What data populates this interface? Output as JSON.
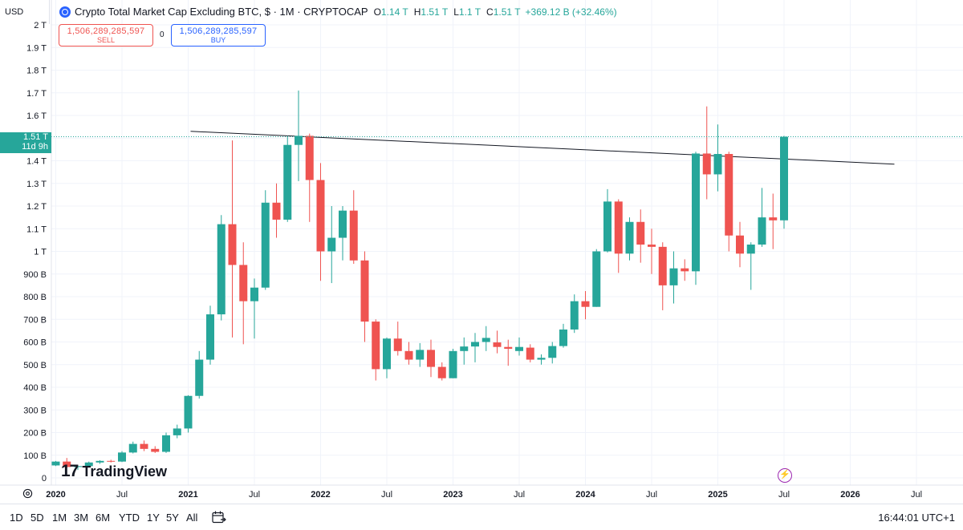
{
  "currency": "USD",
  "symbol": {
    "title": "Crypto Total Market Cap Excluding BTC, $ · 1M · CRYPTOCAP",
    "ohlc": [
      {
        "key": "O",
        "value": "1.14 T"
      },
      {
        "key": "H",
        "value": "1.51 T"
      },
      {
        "key": "L",
        "value": "1.1 T"
      },
      {
        "key": "C",
        "value": "1.51 T"
      }
    ],
    "change": "+369.12 B (+32.46%)"
  },
  "trade": {
    "sell_price": "1,506,289,285,597",
    "sell_label": "SELL",
    "spread": "0",
    "buy_price": "1,506,289,285,597",
    "buy_label": "BUY"
  },
  "last_price": {
    "value": "1.51 T",
    "countdown": "11d 9h"
  },
  "logo_text": "TradingView",
  "logo_mark": "17",
  "event_marker": "⚡",
  "periods": [
    "1D",
    "5D",
    "1M",
    "3M",
    "6M",
    "YTD",
    "1Y",
    "5Y",
    "All"
  ],
  "time": "16:44:01 UTC+1",
  "colors": {
    "up": "#26a69a",
    "down": "#ef5350",
    "accent": "#2962ff",
    "event": "#9c27b0"
  },
  "chart_data": {
    "type": "candlestick",
    "interval": "1M",
    "y_unit": "USD",
    "ylim": [
      0,
      2000000000000
    ],
    "y_ticks": [
      {
        "value": 0,
        "label": "0"
      },
      {
        "value": 100,
        "label": "100 B"
      },
      {
        "value": 200,
        "label": "200 B"
      },
      {
        "value": 300,
        "label": "300 B"
      },
      {
        "value": 400,
        "label": "400 B"
      },
      {
        "value": 500,
        "label": "500 B"
      },
      {
        "value": 600,
        "label": "600 B"
      },
      {
        "value": 700,
        "label": "700 B"
      },
      {
        "value": 800,
        "label": "800 B"
      },
      {
        "value": 900,
        "label": "900 B"
      },
      {
        "value": 1000,
        "label": "1 T"
      },
      {
        "value": 1100,
        "label": "1.1 T"
      },
      {
        "value": 1200,
        "label": "1.2 T"
      },
      {
        "value": 1300,
        "label": "1.3 T"
      },
      {
        "value": 1400,
        "label": "1.4 T"
      },
      {
        "value": 1500,
        "label": "1.5 T"
      },
      {
        "value": 1600,
        "label": "1.6 T"
      },
      {
        "value": 1700,
        "label": "1.7 T"
      },
      {
        "value": 1800,
        "label": "1.8 T"
      },
      {
        "value": 1900,
        "label": "1.9 T"
      },
      {
        "value": 2000,
        "label": "2 T"
      }
    ],
    "x_ticks": [
      {
        "date": "2020-01",
        "label": "2020",
        "year": true
      },
      {
        "date": "2020-07",
        "label": "Jul",
        "year": false
      },
      {
        "date": "2021-01",
        "label": "2021",
        "year": true
      },
      {
        "date": "2021-07",
        "label": "Jul",
        "year": false
      },
      {
        "date": "2022-01",
        "label": "2022",
        "year": true
      },
      {
        "date": "2022-07",
        "label": "Jul",
        "year": false
      },
      {
        "date": "2023-01",
        "label": "2023",
        "year": true
      },
      {
        "date": "2023-07",
        "label": "Jul",
        "year": false
      },
      {
        "date": "2024-01",
        "label": "2024",
        "year": true
      },
      {
        "date": "2024-07",
        "label": "Jul",
        "year": false
      },
      {
        "date": "2025-01",
        "label": "2025",
        "year": true
      },
      {
        "date": "2025-07",
        "label": "Jul",
        "year": false
      },
      {
        "date": "2026-01",
        "label": "2026",
        "year": true
      },
      {
        "date": "2026-07",
        "label": "Jul",
        "year": false
      }
    ],
    "value_scale": "billions",
    "candles": [
      {
        "date": "2020-01",
        "o": 55,
        "h": 75,
        "l": 52,
        "c": 72
      },
      {
        "date": "2020-02",
        "o": 72,
        "h": 88,
        "l": 45,
        "c": 48
      },
      {
        "date": "2020-03",
        "o": 48,
        "h": 55,
        "l": 35,
        "c": 52
      },
      {
        "date": "2020-04",
        "o": 52,
        "h": 72,
        "l": 48,
        "c": 68
      },
      {
        "date": "2020-05",
        "o": 68,
        "h": 78,
        "l": 62,
        "c": 75
      },
      {
        "date": "2020-06",
        "o": 75,
        "h": 80,
        "l": 68,
        "c": 72
      },
      {
        "date": "2020-07",
        "o": 72,
        "h": 118,
        "l": 70,
        "c": 112
      },
      {
        "date": "2020-08",
        "o": 112,
        "h": 160,
        "l": 108,
        "c": 150
      },
      {
        "date": "2020-09",
        "o": 150,
        "h": 165,
        "l": 118,
        "c": 128
      },
      {
        "date": "2020-10",
        "o": 128,
        "h": 140,
        "l": 110,
        "c": 115
      },
      {
        "date": "2020-11",
        "o": 115,
        "h": 200,
        "l": 110,
        "c": 188
      },
      {
        "date": "2020-12",
        "o": 188,
        "h": 235,
        "l": 175,
        "c": 218
      },
      {
        "date": "2021-01",
        "o": 218,
        "h": 365,
        "l": 200,
        "c": 362
      },
      {
        "date": "2021-02",
        "o": 362,
        "h": 560,
        "l": 350,
        "c": 522
      },
      {
        "date": "2021-03",
        "o": 522,
        "h": 760,
        "l": 500,
        "c": 722
      },
      {
        "date": "2021-04",
        "o": 722,
        "h": 1160,
        "l": 695,
        "c": 1120
      },
      {
        "date": "2021-05",
        "o": 1120,
        "h": 1490,
        "l": 620,
        "c": 940
      },
      {
        "date": "2021-06",
        "o": 940,
        "h": 1040,
        "l": 590,
        "c": 780
      },
      {
        "date": "2021-07",
        "o": 780,
        "h": 880,
        "l": 615,
        "c": 840
      },
      {
        "date": "2021-08",
        "o": 840,
        "h": 1270,
        "l": 830,
        "c": 1215
      },
      {
        "date": "2021-09",
        "o": 1215,
        "h": 1300,
        "l": 1060,
        "c": 1140
      },
      {
        "date": "2021-10",
        "o": 1140,
        "h": 1510,
        "l": 1130,
        "c": 1470
      },
      {
        "date": "2021-11",
        "o": 1470,
        "h": 1710,
        "l": 1310,
        "c": 1510
      },
      {
        "date": "2021-12",
        "o": 1510,
        "h": 1520,
        "l": 1130,
        "c": 1315
      },
      {
        "date": "2022-01",
        "o": 1315,
        "h": 1390,
        "l": 870,
        "c": 1000
      },
      {
        "date": "2022-02",
        "o": 1000,
        "h": 1200,
        "l": 860,
        "c": 1060
      },
      {
        "date": "2022-03",
        "o": 1060,
        "h": 1200,
        "l": 960,
        "c": 1180
      },
      {
        "date": "2022-04",
        "o": 1180,
        "h": 1270,
        "l": 945,
        "c": 960
      },
      {
        "date": "2022-05",
        "o": 960,
        "h": 1000,
        "l": 600,
        "c": 690
      },
      {
        "date": "2022-06",
        "o": 690,
        "h": 700,
        "l": 430,
        "c": 480
      },
      {
        "date": "2022-07",
        "o": 480,
        "h": 620,
        "l": 440,
        "c": 615
      },
      {
        "date": "2022-08",
        "o": 615,
        "h": 690,
        "l": 540,
        "c": 560
      },
      {
        "date": "2022-09",
        "o": 560,
        "h": 600,
        "l": 500,
        "c": 522
      },
      {
        "date": "2022-10",
        "o": 522,
        "h": 595,
        "l": 490,
        "c": 565
      },
      {
        "date": "2022-11",
        "o": 565,
        "h": 610,
        "l": 445,
        "c": 490
      },
      {
        "date": "2022-12",
        "o": 490,
        "h": 510,
        "l": 430,
        "c": 440
      },
      {
        "date": "2023-01",
        "o": 440,
        "h": 570,
        "l": 440,
        "c": 560
      },
      {
        "date": "2023-02",
        "o": 560,
        "h": 620,
        "l": 500,
        "c": 580
      },
      {
        "date": "2023-03",
        "o": 580,
        "h": 640,
        "l": 510,
        "c": 600
      },
      {
        "date": "2023-04",
        "o": 600,
        "h": 670,
        "l": 560,
        "c": 618
      },
      {
        "date": "2023-05",
        "o": 598,
        "h": 650,
        "l": 550,
        "c": 578
      },
      {
        "date": "2023-06",
        "o": 578,
        "h": 610,
        "l": 495,
        "c": 570
      },
      {
        "date": "2023-07",
        "o": 560,
        "h": 620,
        "l": 540,
        "c": 578
      },
      {
        "date": "2023-08",
        "o": 575,
        "h": 590,
        "l": 510,
        "c": 522
      },
      {
        "date": "2023-09",
        "o": 522,
        "h": 545,
        "l": 500,
        "c": 530
      },
      {
        "date": "2023-10",
        "o": 530,
        "h": 600,
        "l": 505,
        "c": 582
      },
      {
        "date": "2023-11",
        "o": 582,
        "h": 680,
        "l": 575,
        "c": 655
      },
      {
        "date": "2023-12",
        "o": 655,
        "h": 810,
        "l": 640,
        "c": 780
      },
      {
        "date": "2024-01",
        "o": 780,
        "h": 825,
        "l": 700,
        "c": 755
      },
      {
        "date": "2024-02",
        "o": 755,
        "h": 1010,
        "l": 755,
        "c": 1000
      },
      {
        "date": "2024-03",
        "o": 1000,
        "h": 1275,
        "l": 995,
        "c": 1220
      },
      {
        "date": "2024-04",
        "o": 1220,
        "h": 1230,
        "l": 905,
        "c": 990
      },
      {
        "date": "2024-05",
        "o": 990,
        "h": 1150,
        "l": 960,
        "c": 1130
      },
      {
        "date": "2024-06",
        "o": 1130,
        "h": 1185,
        "l": 950,
        "c": 1030
      },
      {
        "date": "2024-07",
        "o": 1030,
        "h": 1100,
        "l": 900,
        "c": 1020
      },
      {
        "date": "2024-08",
        "o": 1020,
        "h": 1040,
        "l": 740,
        "c": 850
      },
      {
        "date": "2024-09",
        "o": 850,
        "h": 1000,
        "l": 770,
        "c": 925
      },
      {
        "date": "2024-10",
        "o": 925,
        "h": 965,
        "l": 870,
        "c": 912
      },
      {
        "date": "2024-11",
        "o": 912,
        "h": 1440,
        "l": 852,
        "c": 1432
      },
      {
        "date": "2024-12",
        "o": 1432,
        "h": 1640,
        "l": 1230,
        "c": 1340
      },
      {
        "date": "2025-01",
        "o": 1340,
        "h": 1560,
        "l": 1265,
        "c": 1430
      },
      {
        "date": "2025-02",
        "o": 1430,
        "h": 1440,
        "l": 1000,
        "c": 1070
      },
      {
        "date": "2025-03",
        "o": 1070,
        "h": 1130,
        "l": 930,
        "c": 990
      },
      {
        "date": "2025-04",
        "o": 990,
        "h": 1040,
        "l": 830,
        "c": 1030
      },
      {
        "date": "2025-05",
        "o": 1030,
        "h": 1280,
        "l": 1020,
        "c": 1150
      },
      {
        "date": "2025-06",
        "o": 1150,
        "h": 1255,
        "l": 1010,
        "c": 1137
      },
      {
        "date": "2025-07",
        "o": 1137,
        "h": 1510,
        "l": 1100,
        "c": 1506
      }
    ],
    "trendline": {
      "start": {
        "date": "2021-01",
        "value": 1530
      },
      "end": {
        "date": "2026-05",
        "value": 1385
      }
    },
    "price_line_value": 1506
  }
}
